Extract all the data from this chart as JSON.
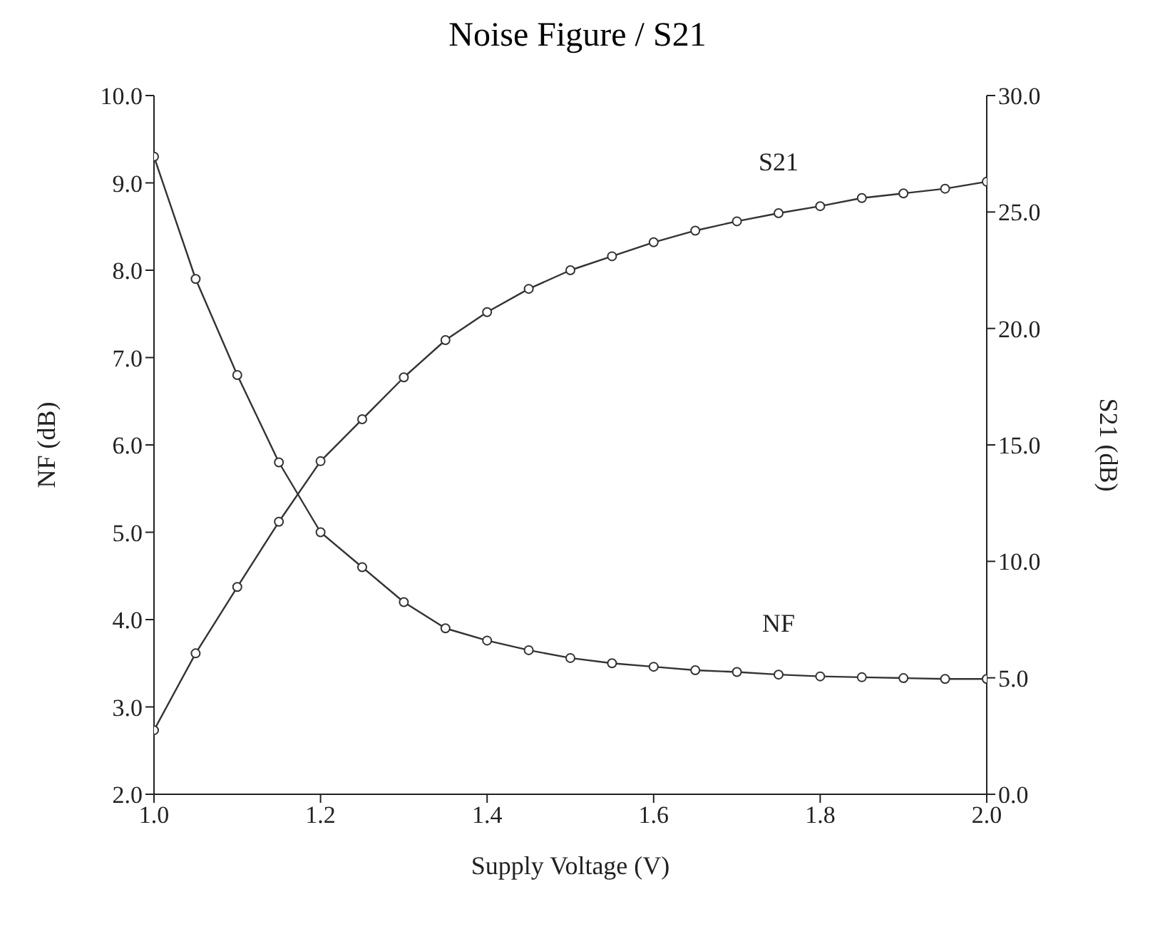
{
  "chart_data": {
    "type": "line",
    "title": "Noise Figure / S21",
    "xlabel": "Supply Voltage (V)",
    "ylabel": "NF (dB)",
    "y2label": "S21 (dB)",
    "x": [
      1.0,
      1.05,
      1.1,
      1.15,
      1.2,
      1.25,
      1.3,
      1.35,
      1.4,
      1.45,
      1.5,
      1.55,
      1.6,
      1.65,
      1.7,
      1.75,
      1.8,
      1.85,
      1.9,
      1.95,
      2.0
    ],
    "series": [
      {
        "name": "NF",
        "color": "#333333",
        "values": [
          9.3,
          7.9,
          6.8,
          5.8,
          5.0,
          4.6,
          4.2,
          3.9,
          3.76,
          3.65,
          3.56,
          3.5,
          3.46,
          3.42,
          3.4,
          3.37,
          3.35,
          3.34,
          3.33,
          3.32,
          3.32
        ]
      },
      {
        "name": "S21",
        "color": "#333333",
        "axis": "y2",
        "values": [
          2.75,
          6.05,
          8.9,
          11.7,
          14.3,
          16.1,
          17.9,
          19.5,
          20.7,
          21.7,
          22.5,
          23.1,
          23.7,
          24.2,
          24.6,
          24.95,
          25.25,
          25.6,
          25.8,
          26.0,
          26.3
        ]
      }
    ],
    "xlim": [
      1.0,
      2.0
    ],
    "xticks": [
      {
        "value": 1.0,
        "label": "1.0"
      },
      1.2,
      1.4,
      1.6,
      1.8,
      {
        "value": 2.0,
        "label": "2.0"
      }
    ],
    "ylim": [
      2.0,
      10.0
    ],
    "yticks": [
      {
        "value": 2,
        "label": "2.0"
      },
      {
        "value": 3,
        "label": "3.0"
      },
      {
        "value": 4,
        "label": "4.0"
      },
      {
        "value": 5,
        "label": "5.0"
      },
      {
        "value": 6,
        "label": "6.0"
      },
      {
        "value": 7,
        "label": "7.0"
      },
      {
        "value": 8,
        "label": "8.0"
      },
      {
        "value": 9,
        "label": "9.0"
      },
      {
        "value": 10,
        "label": "10.0"
      }
    ],
    "y2lim": [
      0,
      30
    ],
    "y2ticks": [
      {
        "value": 0,
        "label": "0.0"
      },
      {
        "value": 5,
        "label": "5.0"
      },
      {
        "value": 10,
        "label": "10.0"
      },
      {
        "value": 15,
        "label": "15.0"
      },
      {
        "value": 20,
        "label": "20.0"
      },
      {
        "value": 25,
        "label": "25.0"
      },
      {
        "value": 30,
        "label": "30.0"
      }
    ],
    "marker": "circle",
    "grid": false,
    "legend": false
  }
}
